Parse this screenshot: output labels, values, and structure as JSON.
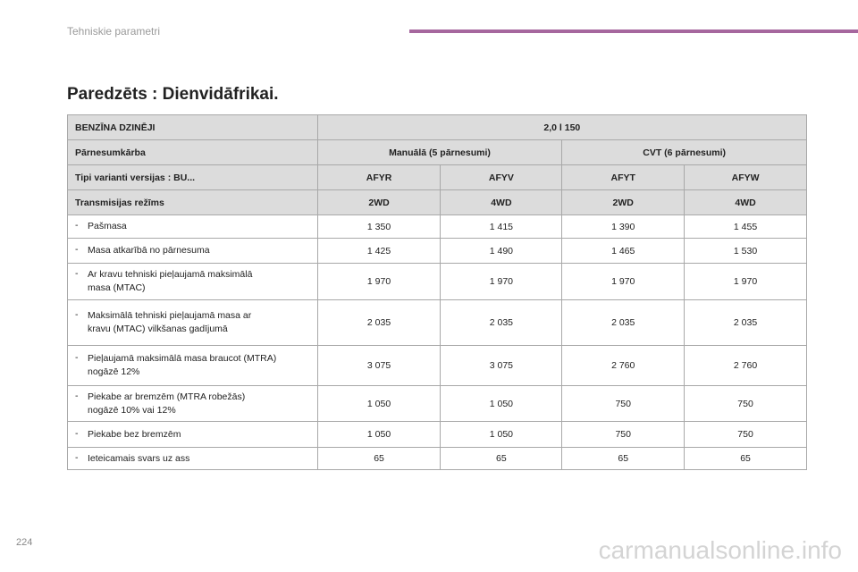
{
  "header": {
    "section": "Tehniskie parametri"
  },
  "title": "Paredzēts : Dienvidāfrikai.",
  "table": {
    "head": [
      [
        "BENZĪNA DZINĒJI",
        "2,0 l 150"
      ],
      [
        "Pārnesumkārba",
        "Manuālā (5 pārnesumi)",
        "CVT (6 pārnesumi)"
      ],
      [
        "Tipi varianti versijas : BU...",
        "AFYR",
        "AFYV",
        "AFYT",
        "AFYW"
      ],
      [
        "Transmisijas režīms",
        "2WD",
        "4WD",
        "2WD",
        "4WD"
      ]
    ],
    "row_marker": "-",
    "rows": [
      [
        "Pašmasa",
        "1 350",
        "1 415",
        "1 390",
        "1 455"
      ],
      [
        "Masa atkarībā no pārnesuma",
        "1 425",
        "1 490",
        "1 465",
        "1 530"
      ],
      [
        "Ar kravu tehniski pieļaujamā maksimālā\nmasa (MTAC)",
        "1 970",
        "1 970",
        "1 970",
        "1 970"
      ],
      [
        "Maksimālā tehniski pieļaujamā masa ar\nkravu (MTAC) vilkšanas gadījumā",
        "2 035",
        "2 035",
        "2 035",
        "2 035"
      ],
      [
        "Pieļaujamā maksimālā masa braucot (MTRA)\nnogāzē 12%",
        "3 075",
        "3 075",
        "2 760",
        "2 760"
      ],
      [
        "Piekabe ar bremzēm (MTRA robežās)\nnogāzē 10% vai 12%",
        "1 050",
        "1 050",
        "750",
        "750"
      ],
      [
        "Piekabe bez bremzēm",
        "1 050",
        "1 050",
        "750",
        "750"
      ],
      [
        "Ieteicamais svars uz ass",
        "65",
        "65",
        "65",
        "65"
      ]
    ]
  },
  "footer": {
    "page": "224",
    "watermark": "carmanualsonline.info"
  }
}
